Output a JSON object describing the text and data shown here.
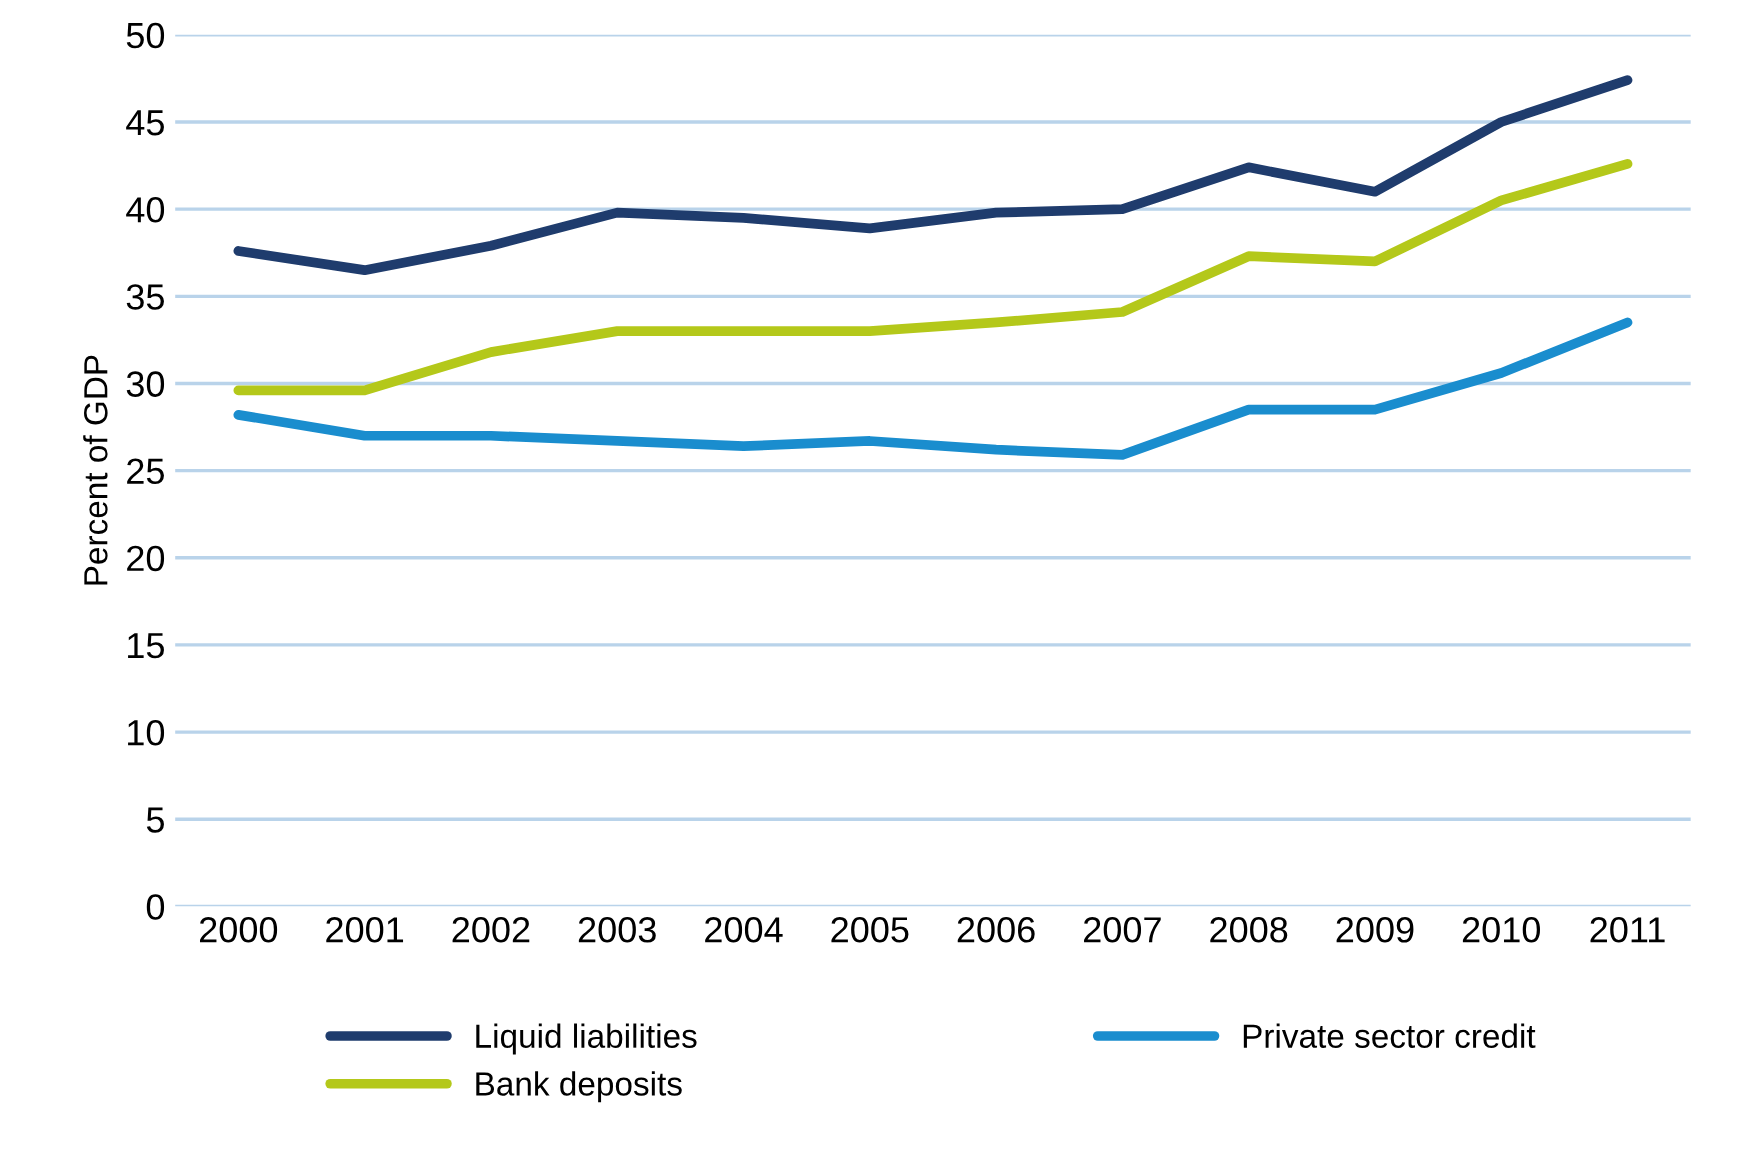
{
  "chart_data": {
    "type": "line",
    "ylabel": "Percent of GDP",
    "categories": [
      "2000",
      "2001",
      "2002",
      "2003",
      "2004",
      "2005",
      "2006",
      "2007",
      "2008",
      "2009",
      "2010",
      "2011"
    ],
    "series": [
      {
        "name": "Liquid liabilities",
        "color": "#1f3c6d",
        "values": [
          37.6,
          36.5,
          37.9,
          39.8,
          39.5,
          38.9,
          39.8,
          40.0,
          42.4,
          41.0,
          45.0,
          47.4
        ]
      },
      {
        "name": "Bank deposits",
        "color": "#b4c81a",
        "values": [
          29.6,
          29.6,
          31.8,
          33.0,
          33.0,
          33.0,
          33.5,
          34.1,
          37.3,
          37.0,
          40.5,
          42.6
        ]
      },
      {
        "name": "Private sector credit",
        "color": "#1a8dce",
        "values": [
          28.2,
          27.0,
          27.0,
          26.7,
          26.4,
          26.7,
          26.2,
          25.9,
          28.5,
          28.5,
          30.6,
          33.5
        ]
      }
    ],
    "ylim": [
      0,
      50
    ],
    "yticks": [
      0,
      5,
      10,
      15,
      20,
      25,
      30,
      35,
      40,
      45,
      50
    ],
    "grid": "y",
    "legend": "bottom",
    "marker": "none",
    "line_style": "solid"
  }
}
